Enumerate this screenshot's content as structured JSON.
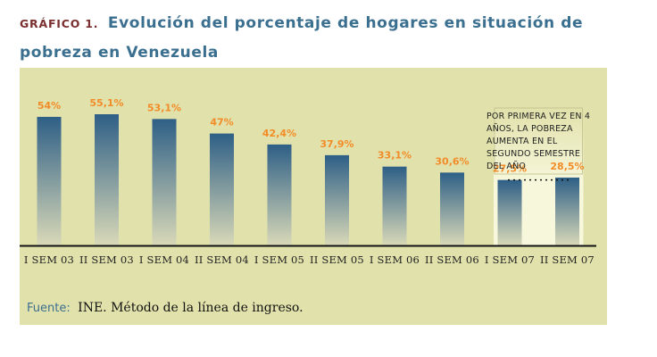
{
  "header": {
    "label": "GRÁFICO 1.",
    "title": "Evolución del porcentaje de hogares en situación de pobreza en Venezuela"
  },
  "annotation": {
    "text": "POR PRIMERA VEZ EN 4 AÑOS, LA POBREZA AUMENTA EN EL SEGUNDO SEMESTRE DEL AÑO"
  },
  "source": {
    "label": "Fuente:",
    "text": "INE. Método de la línea de ingreso."
  },
  "colors": {
    "panel": "#e1e1ab",
    "bar_top": "#2e5f86",
    "bar_bottom": "#d9d9b8",
    "value_label": "#f28c28",
    "highlight": "#f7f7dc",
    "axis": "#111111"
  },
  "chart_data": {
    "type": "bar",
    "title": "Evolución del porcentaje de hogares en situación de pobreza en Venezuela",
    "xlabel": "",
    "ylabel": "",
    "ylim": [
      0,
      60
    ],
    "categories": [
      "I SEM 03",
      "II SEM 03",
      "I SEM 04",
      "II SEM 04",
      "I SEM 05",
      "II SEM 05",
      "I SEM 06",
      "II SEM 06",
      "I SEM 07",
      "II SEM 07"
    ],
    "values": [
      54,
      55.1,
      53.1,
      47,
      42.4,
      37.9,
      33.1,
      30.6,
      27.5,
      28.5
    ],
    "value_labels": [
      "54%",
      "55,1%",
      "53,1%",
      "47%",
      "42,4%",
      "37,9%",
      "33,1%",
      "30,6%",
      "27,5%",
      "28,5%"
    ],
    "highlighted_categories": [
      "I SEM 07",
      "II SEM 07"
    ],
    "reference_line_value": 27.5
  }
}
